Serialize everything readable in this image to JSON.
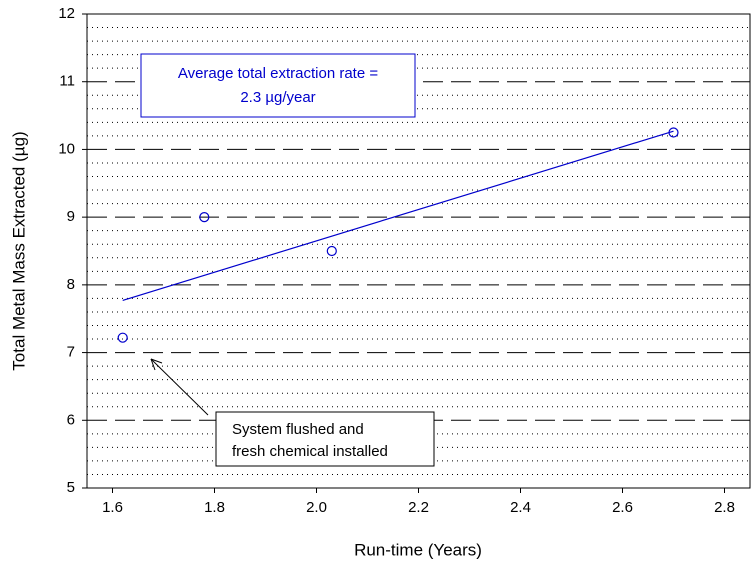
{
  "chart_data": {
    "type": "scatter",
    "xlabel": "Run-time (Years)",
    "ylabel": "Total Metal Mass Extracted (µg)",
    "x": [
      1.62,
      1.78,
      2.03,
      2.7
    ],
    "values": [
      7.22,
      9.0,
      8.5,
      10.25
    ],
    "color": "#0000cc",
    "fit_line": {
      "x": [
        1.62,
        2.7
      ],
      "y": [
        7.77,
        10.27
      ]
    },
    "xlim": [
      1.55,
      2.85
    ],
    "ylim": [
      5,
      12
    ],
    "xticks": [
      {
        "value": 1.6,
        "label": "1.6"
      },
      {
        "value": 1.8,
        "label": "1.8"
      },
      {
        "value": 2.0,
        "label": "2.0"
      },
      {
        "value": 2.2,
        "label": "2.2"
      },
      {
        "value": 2.4,
        "label": "2.4"
      },
      {
        "value": 2.6,
        "label": "2.6"
      },
      {
        "value": 2.8,
        "label": "2.8"
      }
    ],
    "yticks": [
      5,
      6,
      7,
      8,
      9,
      10,
      11,
      12
    ],
    "y_minor_ticks": [
      5.2,
      5.4,
      5.6,
      5.8,
      6.2,
      6.4,
      6.6,
      6.8,
      7.2,
      7.4,
      7.6,
      7.8,
      8.2,
      8.4,
      8.6,
      8.8,
      9.2,
      9.4,
      9.6,
      9.8,
      10.2,
      10.4,
      10.6,
      10.8,
      11.2,
      11.4,
      11.6,
      11.8
    ],
    "grid": true,
    "annotations": [
      {
        "lines": [
          "Average total extraction rate =",
          "2.3 µg/year"
        ]
      },
      {
        "lines": [
          "System flushed and",
          "fresh chemical installed"
        ]
      }
    ]
  }
}
